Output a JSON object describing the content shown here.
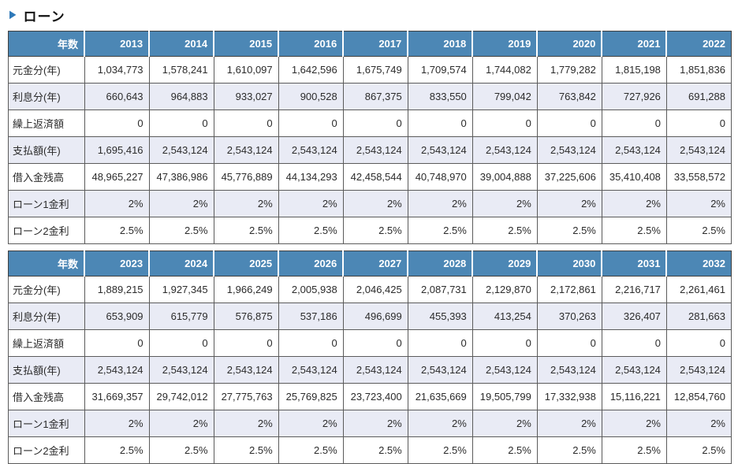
{
  "page": {
    "title": "ローン",
    "marker_icon": "▶",
    "accent_color": "#2e79b9",
    "header_bg_color": "#4c87b5",
    "alt_row_color": "#e9ebf5"
  },
  "table1": {
    "header_label": "年数",
    "years": [
      "2013",
      "2014",
      "2015",
      "2016",
      "2017",
      "2018",
      "2019",
      "2020",
      "2021",
      "2022"
    ],
    "rows": [
      {
        "label": "元金分(年)",
        "values": [
          "1,034,773",
          "1,578,241",
          "1,610,097",
          "1,642,596",
          "1,675,749",
          "1,709,574",
          "1,744,082",
          "1,779,282",
          "1,815,198",
          "1,851,836"
        ]
      },
      {
        "label": "利息分(年)",
        "values": [
          "660,643",
          "964,883",
          "933,027",
          "900,528",
          "867,375",
          "833,550",
          "799,042",
          "763,842",
          "727,926",
          "691,288"
        ]
      },
      {
        "label": "繰上返済額",
        "values": [
          "0",
          "0",
          "0",
          "0",
          "0",
          "0",
          "0",
          "0",
          "0",
          "0"
        ]
      },
      {
        "label": "支払額(年)",
        "values": [
          "1,695,416",
          "2,543,124",
          "2,543,124",
          "2,543,124",
          "2,543,124",
          "2,543,124",
          "2,543,124",
          "2,543,124",
          "2,543,124",
          "2,543,124"
        ]
      },
      {
        "label": "借入金残高",
        "values": [
          "48,965,227",
          "47,386,986",
          "45,776,889",
          "44,134,293",
          "42,458,544",
          "40,748,970",
          "39,004,888",
          "37,225,606",
          "35,410,408",
          "33,558,572"
        ]
      },
      {
        "label": "ローン1金利",
        "values": [
          "2%",
          "2%",
          "2%",
          "2%",
          "2%",
          "2%",
          "2%",
          "2%",
          "2%",
          "2%"
        ]
      },
      {
        "label": "ローン2金利",
        "values": [
          "2.5%",
          "2.5%",
          "2.5%",
          "2.5%",
          "2.5%",
          "2.5%",
          "2.5%",
          "2.5%",
          "2.5%",
          "2.5%"
        ]
      }
    ]
  },
  "table2": {
    "header_label": "年数",
    "years": [
      "2023",
      "2024",
      "2025",
      "2026",
      "2027",
      "2028",
      "2029",
      "2030",
      "2031",
      "2032"
    ],
    "rows": [
      {
        "label": "元金分(年)",
        "values": [
          "1,889,215",
          "1,927,345",
          "1,966,249",
          "2,005,938",
          "2,046,425",
          "2,087,731",
          "2,129,870",
          "2,172,861",
          "2,216,717",
          "2,261,461"
        ]
      },
      {
        "label": "利息分(年)",
        "values": [
          "653,909",
          "615,779",
          "576,875",
          "537,186",
          "496,699",
          "455,393",
          "413,254",
          "370,263",
          "326,407",
          "281,663"
        ]
      },
      {
        "label": "繰上返済額",
        "values": [
          "0",
          "0",
          "0",
          "0",
          "0",
          "0",
          "0",
          "0",
          "0",
          "0"
        ]
      },
      {
        "label": "支払額(年)",
        "values": [
          "2,543,124",
          "2,543,124",
          "2,543,124",
          "2,543,124",
          "2,543,124",
          "2,543,124",
          "2,543,124",
          "2,543,124",
          "2,543,124",
          "2,543,124"
        ]
      },
      {
        "label": "借入金残高",
        "values": [
          "31,669,357",
          "29,742,012",
          "27,775,763",
          "25,769,825",
          "23,723,400",
          "21,635,669",
          "19,505,799",
          "17,332,938",
          "15,116,221",
          "12,854,760"
        ]
      },
      {
        "label": "ローン1金利",
        "values": [
          "2%",
          "2%",
          "2%",
          "2%",
          "2%",
          "2%",
          "2%",
          "2%",
          "2%",
          "2%"
        ]
      },
      {
        "label": "ローン2金利",
        "values": [
          "2.5%",
          "2.5%",
          "2.5%",
          "2.5%",
          "2.5%",
          "2.5%",
          "2.5%",
          "2.5%",
          "2.5%",
          "2.5%"
        ]
      }
    ]
  }
}
